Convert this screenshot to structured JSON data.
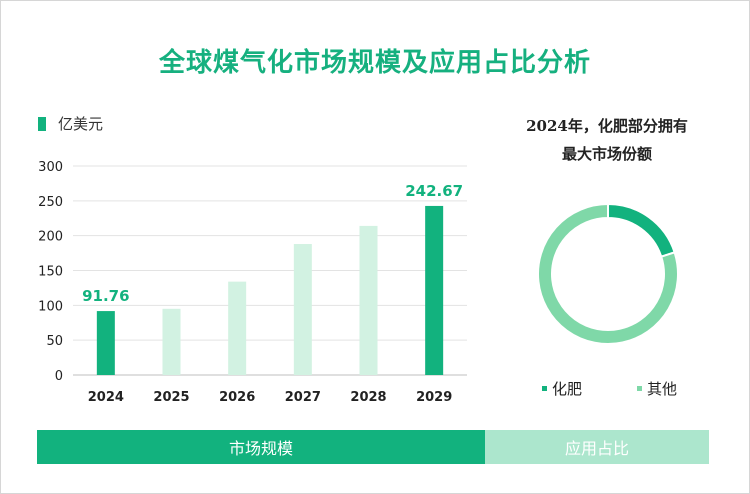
{
  "title": "全球煤气化市场规模及应用占比分析",
  "colors": {
    "accent": "#12b27e",
    "light_bar": "#d2f2e2",
    "pie_main": "#12b27e",
    "pie_other": "#7fd8a8",
    "tab_inactive": "#ace6cd"
  },
  "chart_data": [
    {
      "type": "bar",
      "legend": "亿美元",
      "categories": [
        "2024",
        "2025",
        "2026",
        "2027",
        "2028",
        "2029"
      ],
      "values": [
        91.76,
        95,
        134,
        188,
        214,
        242.67
      ],
      "highlighted": [
        true,
        false,
        false,
        false,
        false,
        true
      ],
      "data_labels": [
        "91.76",
        "",
        "",
        "",
        "",
        "242.67"
      ],
      "ylim": [
        0,
        300
      ],
      "yticks": [
        0,
        50,
        100,
        150,
        200,
        250,
        300
      ],
      "grid": true
    },
    {
      "type": "pie",
      "style": "donut",
      "title_lines": [
        "2024年，化肥部分拥有",
        "最大市场份额"
      ],
      "slices": [
        {
          "label": "化肥",
          "value": 20,
          "color": "#12b27e"
        },
        {
          "label": "其他",
          "value": 80,
          "color": "#7fd8a8"
        }
      ]
    }
  ],
  "tabs": [
    {
      "label": "市场规模",
      "active": true
    },
    {
      "label": "应用占比",
      "active": false
    }
  ]
}
